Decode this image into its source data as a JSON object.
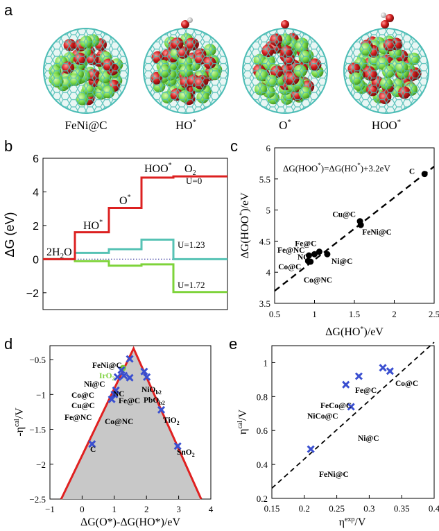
{
  "panel_a": {
    "letter": "a",
    "captions": [
      "FeNi@C",
      "HO*",
      "O*",
      "HOO*"
    ],
    "colors": {
      "cage": "#4dbdb6",
      "fe": "#7ddc4a",
      "ni": "#c81e1e",
      "o": "#e02020",
      "h": "#f2f2f2"
    }
  },
  "chart_data": [
    {
      "type": "line",
      "panel": "b",
      "ylabel": "ΔG (eV)",
      "ylim": [
        -3,
        6
      ],
      "yticks": [
        -2,
        0,
        2,
        4,
        6
      ],
      "step_labels": [
        "2H2O",
        "HO*",
        "O*",
        "HOO*",
        "O2"
      ],
      "series": [
        {
          "name": "U=0",
          "color": "#dc2020",
          "values": [
            0,
            1.6,
            3.05,
            4.85,
            4.92
          ]
        },
        {
          "name": "U=1.23",
          "color": "#56c2b4",
          "values": [
            0,
            0.37,
            0.59,
            1.16,
            0
          ]
        },
        {
          "name": "U=1.72",
          "color": "#7ed33a",
          "values": [
            0,
            -0.12,
            -0.39,
            -0.31,
            -1.96
          ]
        }
      ],
      "reference": {
        "value": 0,
        "style": "dotted",
        "color": "#30309a"
      }
    },
    {
      "type": "scatter",
      "panel": "c",
      "xlabel": "ΔG(HO*)/eV",
      "ylabel": "ΔG(HOO*)/eV",
      "xlim": [
        0.5,
        2.5
      ],
      "ylim": [
        3.5,
        6
      ],
      "xticks": [
        0.5,
        1,
        1.5,
        2,
        2.5
      ],
      "yticks": [
        3.5,
        4,
        4.5,
        5,
        5.5,
        6
      ],
      "annotation": "ΔG(HOO*)=ΔG(HO*)+3.2eV",
      "fit": {
        "slope": 1,
        "intercept": 3.2
      },
      "points": [
        {
          "label": "C",
          "x": 2.38,
          "y": 5.58
        },
        {
          "label": "Cu@C",
          "x": 1.57,
          "y": 4.82
        },
        {
          "label": "FeNi@C",
          "x": 1.58,
          "y": 4.76
        },
        {
          "label": "Fe@C",
          "x": 1.06,
          "y": 4.33
        },
        {
          "label": "Fe@NC",
          "x": 0.93,
          "y": 4.27
        },
        {
          "label": "NC",
          "x": 1.0,
          "y": 4.29
        },
        {
          "label": "Ni@C",
          "x": 1.16,
          "y": 4.29
        },
        {
          "label": "Co@C",
          "x": 0.92,
          "y": 4.18
        },
        {
          "label": "Co@NC",
          "x": 0.95,
          "y": 4.17
        }
      ]
    },
    {
      "type": "scatter",
      "panel": "d",
      "xlabel": "ΔG(O*)-ΔG(HO*)/eV",
      "ylabel": "-η^cal/V",
      "xlim": [
        -1,
        4
      ],
      "ylim": [
        -2.5,
        -0.3
      ],
      "xticks": [
        -1,
        0,
        1,
        2,
        3,
        4
      ],
      "yticks": [
        -2.5,
        -2,
        -1.5,
        -1,
        -0.5
      ],
      "volcano": {
        "left": [
          [
            -0.65,
            -2.5
          ],
          [
            1.6,
            -0.34
          ]
        ],
        "right": [
          [
            1.6,
            -0.34
          ],
          [
            3.7,
            -2.5
          ]
        ],
        "color": "#e02020",
        "fill": "#c8c8c8"
      },
      "points": [
        {
          "label": "FeNi@C",
          "x": 1.48,
          "y": -0.49
        },
        {
          "label": "IrO2",
          "x": 1.27,
          "y": -0.62,
          "color": "#7cd13c"
        },
        {
          "label": "Ni@C",
          "x": 1.22,
          "y": -0.65
        },
        {
          "label": "Co@C",
          "x": 1.1,
          "y": -0.75
        },
        {
          "label": "NC",
          "x": 1.3,
          "y": -0.73
        },
        {
          "label": "Cu@C",
          "x": 1.05,
          "y": -0.94
        },
        {
          "label": "Fe@C",
          "x": 1.48,
          "y": -0.76
        },
        {
          "label": "Fe@NC",
          "x": 0.92,
          "y": -1.07
        },
        {
          "label": "Co@NC",
          "x": 1.0,
          "y": -1.0
        },
        {
          "label": "NiOb2",
          "x": 1.93,
          "y": -0.67
        },
        {
          "label": "PbOb2",
          "x": 2.01,
          "y": -0.75
        },
        {
          "label": "TiO2",
          "x": 2.46,
          "y": -1.22
        },
        {
          "label": "C",
          "x": 0.31,
          "y": -1.71
        },
        {
          "label": "SnO2",
          "x": 2.97,
          "y": -1.74
        }
      ]
    },
    {
      "type": "scatter",
      "panel": "e",
      "xlabel": "η^exp/V",
      "ylabel": "η^cal/V",
      "xlim": [
        0.15,
        0.4
      ],
      "ylim": [
        0.2,
        1.1
      ],
      "xticks": [
        0.15,
        0.2,
        0.25,
        0.3,
        0.35,
        0.4
      ],
      "yticks": [
        0.2,
        0.4,
        0.6,
        0.8,
        1
      ],
      "fit": {
        "from": [
          0.15,
          0.26
        ],
        "to": [
          0.4,
          1.12
        ]
      },
      "points": [
        {
          "label": "Fe@C",
          "x": 0.284,
          "y": 0.92
        },
        {
          "label": "Co@C",
          "x": 0.332,
          "y": 0.95
        },
        {
          "label": "FeCo@C",
          "x": 0.321,
          "y": 0.97
        },
        {
          "label": "NiCo@C",
          "x": 0.264,
          "y": 0.87
        },
        {
          "label": "Ni@C",
          "x": 0.272,
          "y": 0.74
        },
        {
          "label": "FeNi@C",
          "x": 0.21,
          "y": 0.49
        }
      ]
    }
  ],
  "panel_b": {
    "letter": "b",
    "level_labels": {
      "u0": "U=0",
      "u123": "U=1.23",
      "u172": "U=1.72"
    },
    "species": {
      "h2o": "2H",
      "h2o_sub": "2",
      "h2o_tail": "O",
      "ho": "HO",
      "o": "O",
      "hoo": "HOO",
      "o2": "O",
      "o2_sub": "2",
      "star": "*"
    }
  },
  "panel_c": {
    "letter": "c",
    "annotation_parts": [
      "ΔG(HOO",
      "*",
      ")=ΔG(HO",
      "*",
      ")+3.2eV"
    ],
    "xlabel_parts": [
      "ΔG(HO",
      "*",
      ")/eV"
    ],
    "ylabel_parts": [
      "ΔG(HOO",
      "*",
      ")/eV"
    ]
  },
  "panel_d": {
    "letter": "d",
    "ylabel_parts": [
      "-η",
      "cal",
      "/V"
    ],
    "xlabel": "ΔG(O*)-ΔG(HO*)/eV",
    "sub_labels": {
      "nio": [
        "NiO",
        "b2"
      ],
      "pbo": [
        "PbO",
        "b2"
      ],
      "tio": [
        "TiO",
        "2"
      ],
      "sno": [
        "SnO",
        "2"
      ],
      "iro": [
        "IrO",
        "2"
      ]
    }
  },
  "panel_e": {
    "letter": "e",
    "ylabel_parts": [
      "η",
      "cal",
      "/V"
    ],
    "xlabel_parts": [
      "η",
      "exp",
      "/V"
    ]
  }
}
